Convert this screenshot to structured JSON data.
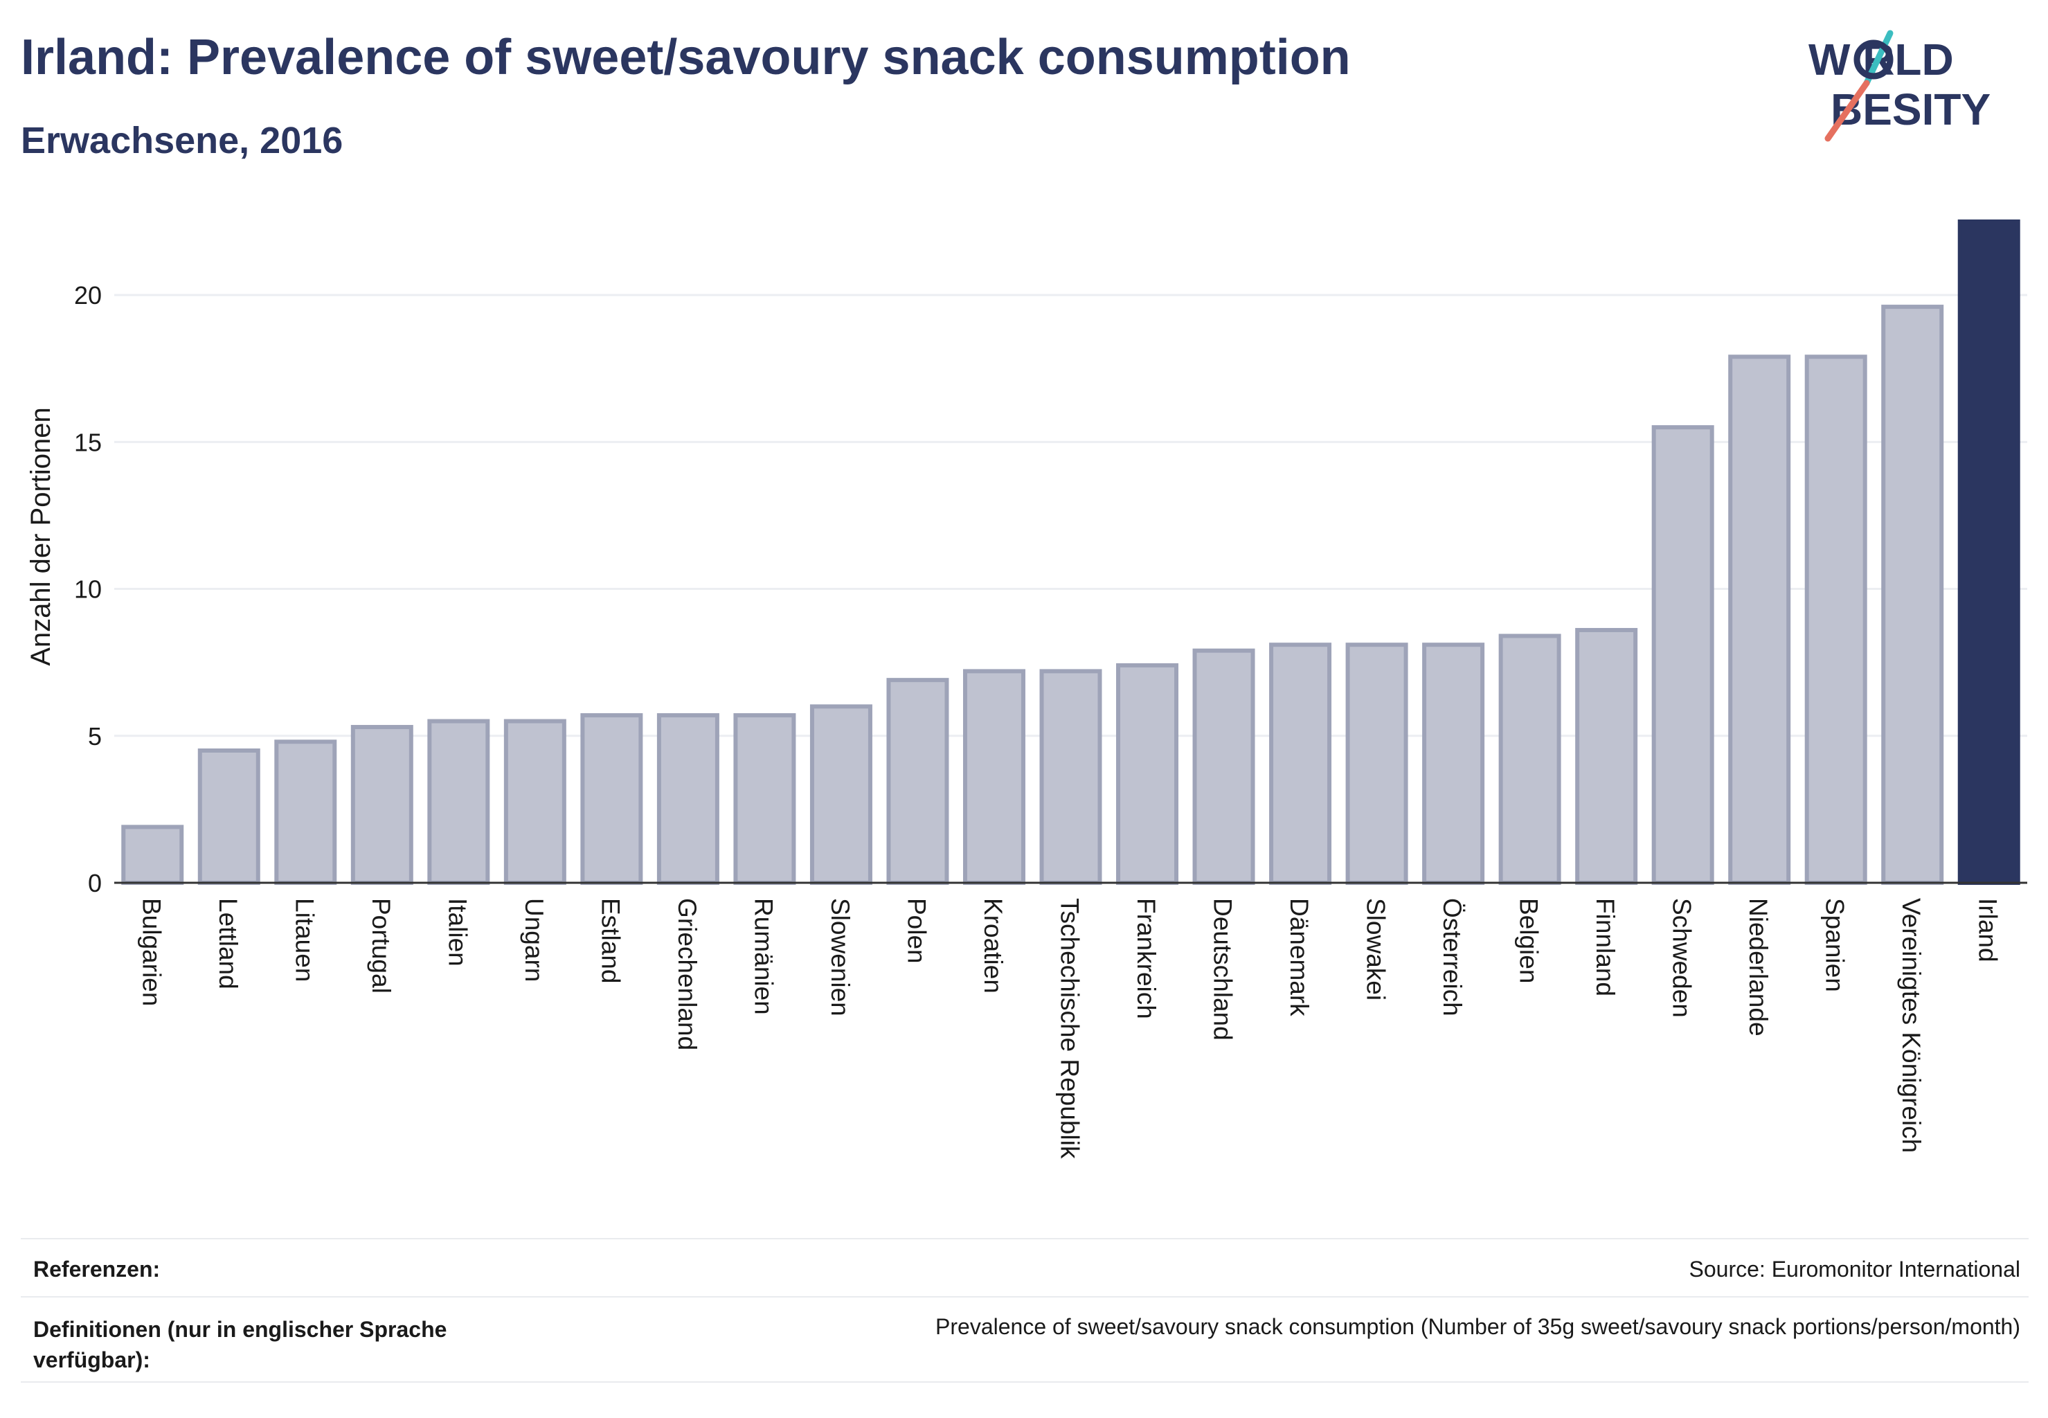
{
  "header": {
    "title": "Irland: Prevalence of sweet/savoury snack consumption",
    "subtitle": "Erwachsene, 2016"
  },
  "logo": {
    "line1": "W RLD",
    "line2": "BESITY",
    "brand_color": "#2b3660",
    "accent_teal": "#3bbdc0",
    "accent_coral": "#e5705f"
  },
  "chart_data": {
    "type": "bar",
    "ylabel": "Anzahl der Portionen",
    "ylim": [
      0,
      22.5
    ],
    "yticks": [
      0,
      5,
      10,
      15,
      20
    ],
    "grid": true,
    "categories": [
      "Bulgarien",
      "Lettland",
      "Litauen",
      "Portugal",
      "Italien",
      "Ungarn",
      "Estland",
      "Griechenland",
      "Rumänien",
      "Slowenien",
      "Polen",
      "Kroatien",
      "Tschechische Republik",
      "Frankreich",
      "Deutschland",
      "Dänemark",
      "Slowakei",
      "Österreich",
      "Belgien",
      "Finnland",
      "Schweden",
      "Niederlande",
      "Spanien",
      "Vereinigtes Königreich",
      "Irland"
    ],
    "values": [
      1.9,
      4.5,
      4.8,
      5.3,
      5.5,
      5.5,
      5.7,
      5.7,
      5.7,
      6.0,
      6.9,
      7.2,
      7.2,
      7.4,
      7.9,
      8.1,
      8.1,
      8.1,
      8.4,
      8.6,
      15.5,
      17.9,
      17.9,
      19.6,
      22.5
    ],
    "highlight": "Irland",
    "bar_color": "#bfc2d0",
    "bar_border": "#9ea3b8",
    "highlight_color": "#2b3660"
  },
  "footer": {
    "references_label": "Referenzen:",
    "references_value": "Source: Euromonitor International",
    "definitions_label": "Definitionen (nur in englischer Sprache verfügbar):",
    "definitions_value": "Prevalence of sweet/savoury snack consumption (Number of 35g sweet/savoury snack portions/person/month)"
  }
}
